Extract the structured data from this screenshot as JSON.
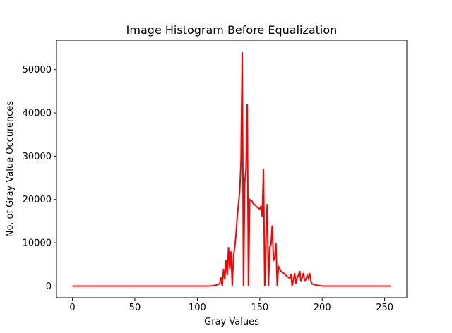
{
  "chart_data": {
    "type": "line",
    "title": "Image Histogram Before Equalization",
    "xlabel": "Gray Values",
    "ylabel": "No. of Gray Value Occurences",
    "xlim": [
      -12.75,
      267.75
    ],
    "ylim": [
      -2700,
      56800
    ],
    "x_ticks": [
      0,
      50,
      100,
      150,
      200,
      250
    ],
    "y_ticks": [
      0,
      10000,
      20000,
      30000,
      40000,
      50000
    ],
    "grid": false,
    "legend": "none",
    "series": [
      {
        "color": "#ff0000",
        "points": [
          [
            0,
            0
          ],
          [
            110,
            0
          ],
          [
            115,
            200
          ],
          [
            117,
            400
          ],
          [
            118,
            600
          ],
          [
            119,
            2000
          ],
          [
            120,
            0
          ],
          [
            121,
            4000
          ],
          [
            122,
            1500
          ],
          [
            123,
            6000
          ],
          [
            124,
            2500
          ],
          [
            125,
            9000
          ],
          [
            126,
            4000
          ],
          [
            127,
            8000
          ],
          [
            128,
            0
          ],
          [
            129,
            7000
          ],
          [
            130,
            9000
          ],
          [
            131,
            12000
          ],
          [
            132,
            16000
          ],
          [
            133,
            19000
          ],
          [
            134,
            22000
          ],
          [
            135,
            29000
          ],
          [
            136,
            54000
          ],
          [
            137,
            0
          ],
          [
            138,
            24000
          ],
          [
            139,
            27000
          ],
          [
            140,
            42000
          ],
          [
            141,
            0
          ],
          [
            142,
            20000
          ],
          [
            143,
            19800
          ],
          [
            144,
            19500
          ],
          [
            145,
            19000
          ],
          [
            146,
            18800
          ],
          [
            147,
            18500
          ],
          [
            148,
            18200
          ],
          [
            149,
            18000
          ],
          [
            150,
            17800
          ],
          [
            151,
            18500
          ],
          [
            152,
            16000
          ],
          [
            153,
            27000
          ],
          [
            154,
            0
          ],
          [
            155,
            11000
          ],
          [
            156,
            19000
          ],
          [
            157,
            0
          ],
          [
            158,
            9000
          ],
          [
            159,
            9500
          ],
          [
            160,
            14000
          ],
          [
            161,
            6000
          ],
          [
            162,
            6500
          ],
          [
            163,
            10000
          ],
          [
            164,
            0
          ],
          [
            165,
            4500
          ],
          [
            166,
            4000
          ],
          [
            167,
            3500
          ],
          [
            168,
            3200
          ],
          [
            169,
            3000
          ],
          [
            170,
            2800
          ],
          [
            171,
            2500
          ],
          [
            172,
            2200
          ],
          [
            173,
            2000
          ],
          [
            174,
            1800
          ],
          [
            175,
            2800
          ],
          [
            176,
            0
          ],
          [
            177,
            1500
          ],
          [
            178,
            3000
          ],
          [
            179,
            500
          ],
          [
            180,
            2000
          ],
          [
            181,
            2500
          ],
          [
            182,
            3500
          ],
          [
            183,
            1000
          ],
          [
            184,
            2000
          ],
          [
            185,
            3000
          ],
          [
            186,
            1200
          ],
          [
            187,
            1500
          ],
          [
            188,
            2500
          ],
          [
            189,
            1800
          ],
          [
            190,
            3000
          ],
          [
            191,
            1000
          ],
          [
            192,
            500
          ],
          [
            193,
            400
          ],
          [
            194,
            300
          ],
          [
            195,
            200
          ],
          [
            196,
            200
          ],
          [
            198,
            100
          ],
          [
            200,
            0
          ],
          [
            255,
            0
          ]
        ]
      }
    ]
  }
}
